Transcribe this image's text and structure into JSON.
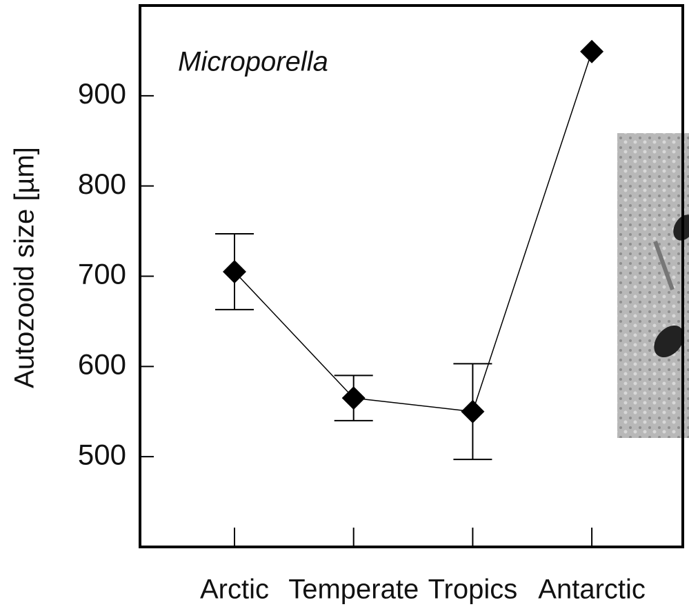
{
  "chart_data": {
    "type": "line",
    "annotation": "Microporella",
    "y_label": "Autozooid size [µm]",
    "categories": [
      "Arctic",
      "Temperate",
      "Tropics",
      "Antarctic"
    ],
    "series": [
      {
        "color": "#000000",
        "values": [
          705,
          565,
          550,
          949
        ],
        "errors": [
          42,
          25,
          53,
          null
        ]
      }
    ],
    "ylim": [
      400,
      1000
    ],
    "yticks": [
      500,
      600,
      700,
      800,
      900
    ],
    "grid": false
  }
}
